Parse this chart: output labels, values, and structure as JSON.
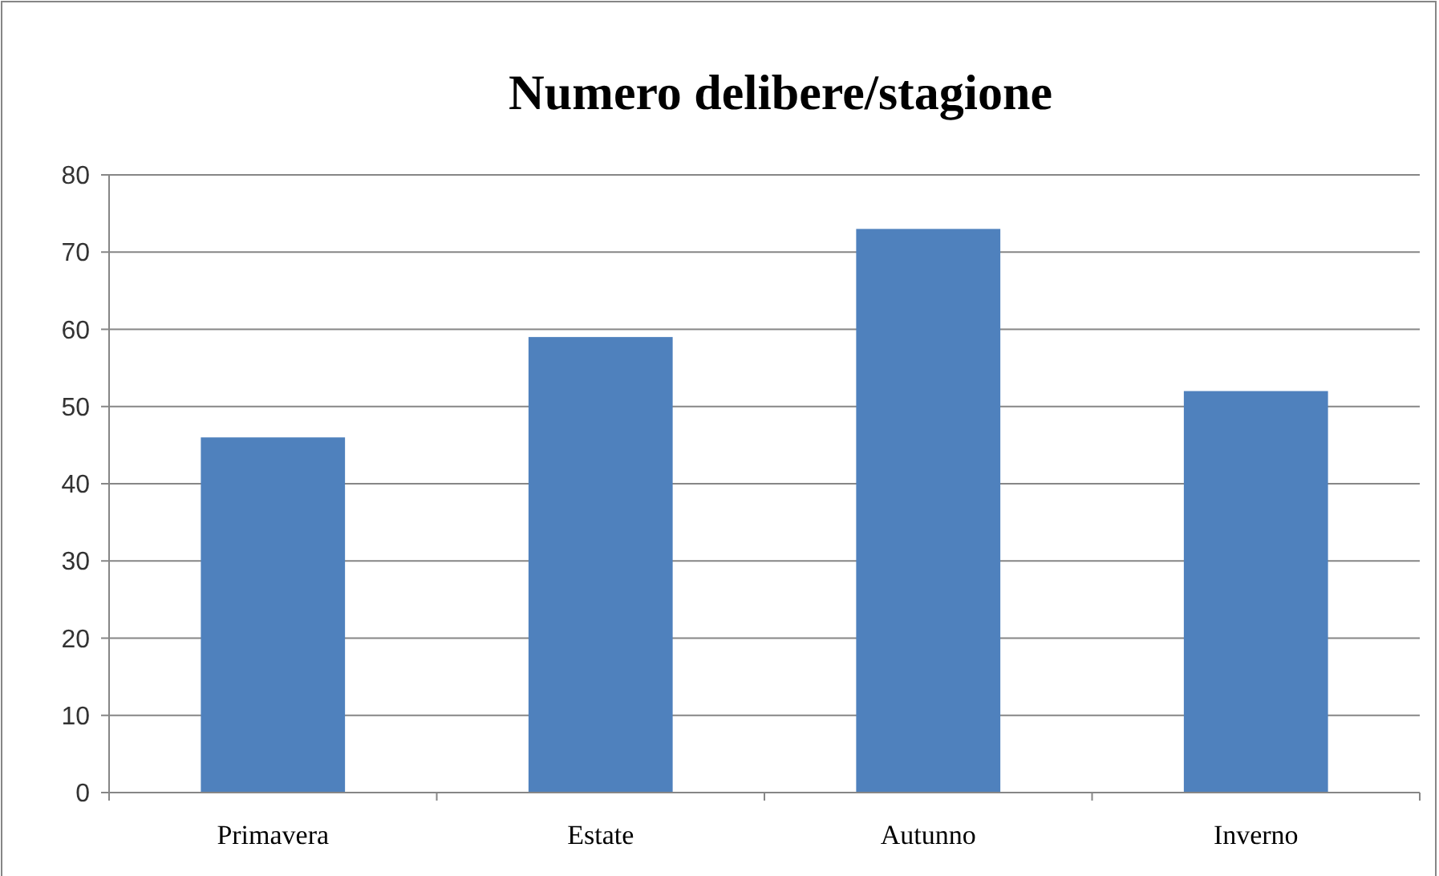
{
  "chart_data": {
    "type": "bar",
    "title": "Numero delibere/stagione",
    "categories": [
      "Primavera",
      "Estate",
      "Autunno",
      "Inverno"
    ],
    "values": [
      46,
      59,
      73,
      52
    ],
    "color": "#4f81bd",
    "ylim": [
      0,
      80
    ],
    "yticks": [
      0,
      10,
      20,
      30,
      40,
      50,
      60,
      70,
      80
    ],
    "grid": "y"
  }
}
